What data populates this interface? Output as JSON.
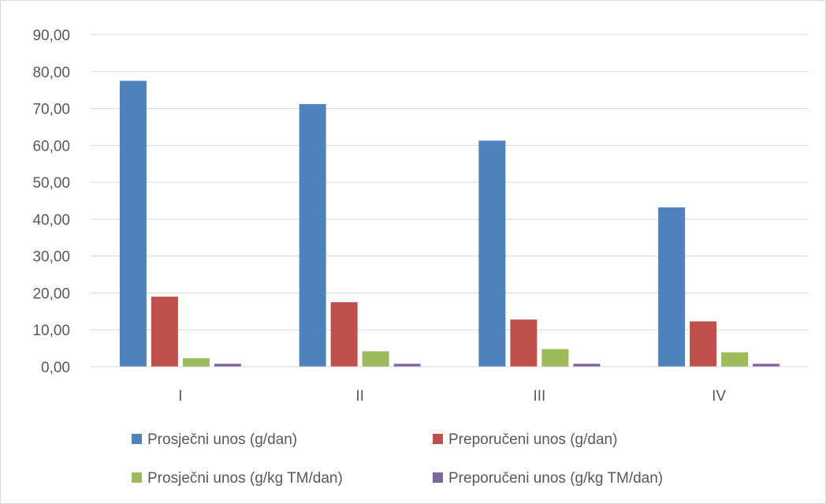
{
  "chart_data": {
    "type": "bar",
    "title": "",
    "xlabel": "",
    "ylabel": "",
    "categories": [
      "I",
      "II",
      "III",
      "IV"
    ],
    "ylim": [
      0,
      90
    ],
    "ytick_step": 10,
    "ytick_labels": [
      "0,00",
      "10,00",
      "20,00",
      "30,00",
      "40,00",
      "50,00",
      "60,00",
      "70,00",
      "80,00",
      "90,00"
    ],
    "grid": true,
    "legend_position": "bottom",
    "series": [
      {
        "name": "Prosječni unos (g/dan)",
        "color": "#4f81bd",
        "values": [
          77.5,
          71.2,
          61.3,
          43.2
        ]
      },
      {
        "name": "Preporučeni unos (g/dan)",
        "color": "#c0504d",
        "values": [
          19.0,
          17.5,
          12.8,
          12.3
        ]
      },
      {
        "name": "Prosječni unos (g/kg TM/dan)",
        "color": "#9bbb59",
        "values": [
          2.3,
          4.2,
          4.8,
          3.9
        ]
      },
      {
        "name": "Preporučeni unos (g/kg TM/dan)",
        "color": "#8064a2",
        "values": [
          0.8,
          0.8,
          0.8,
          0.8
        ]
      }
    ]
  }
}
